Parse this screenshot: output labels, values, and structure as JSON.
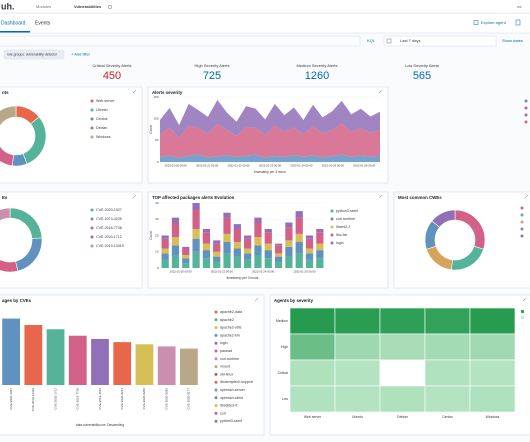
{
  "header": {
    "logo": "uh.",
    "breadcrumb": [
      "Modules",
      "Vulnerabilities"
    ],
    "user": "wz"
  },
  "tabs": [
    "Dashboard",
    "Events"
  ],
  "actions": [
    "Explore agent"
  ],
  "query": {
    "language": "KQL",
    "range": "Last 7 days",
    "show_dates": "Show dates",
    "filter": "rule.groups: vulnerability-detector",
    "add_filter": "+ Add filter"
  },
  "stats": [
    {
      "label": "Critical Severity Alerts",
      "value": 450,
      "color": "#bd271e"
    },
    {
      "label": "High Severity Alerts",
      "value": 725,
      "color": "#006bb4"
    },
    {
      "label": "Medium Severity Alerts",
      "value": 1260,
      "color": "#006bb4"
    },
    {
      "label": "Low Severity Alerts",
      "value": 565,
      "color": "#006bb4"
    }
  ],
  "panels": {
    "agents": {
      "type": "pie",
      "title": "nts",
      "labels": [
        "Web server",
        "Ubuntu",
        "Centos",
        "Debian",
        "Windows"
      ],
      "values": [
        14,
        30,
        8,
        30,
        18
      ],
      "colors": [
        "#e7664c",
        "#54b399",
        "#6092c0",
        "#d36086",
        "#b9a888"
      ]
    },
    "severity": {
      "type": "area",
      "title": "Alerts severity",
      "y_label": "Count",
      "x_label": "timestamp per 3 hours",
      "ylim": [
        0,
        150
      ],
      "yticks": [
        0,
        50,
        100,
        150
      ],
      "xticks": [
        "2022-01-20 00:00",
        "2022-01-21 00:00",
        "2022-01-22 00:00",
        "2022-01-23 00:00",
        "2022-01-24 00:00",
        "2022-01-25 00:00",
        "2022-01-26 00:00"
      ],
      "series": [
        {
          "color": "#6092c0",
          "values": [
            12,
            15,
            10,
            14,
            18,
            11,
            13,
            16,
            12,
            15,
            17,
            10,
            14,
            12,
            16,
            13,
            15,
            11,
            14,
            17,
            12,
            15,
            13,
            14
          ]
        },
        {
          "color": "#d36086",
          "values": [
            50,
            65,
            45,
            70,
            60,
            55,
            75,
            58,
            48,
            66,
            62,
            52,
            70,
            57,
            64,
            50,
            68,
            55,
            60,
            72,
            58,
            63,
            54,
            60
          ]
        },
        {
          "color": "#9170b8",
          "values": [
            35,
            45,
            30,
            50,
            42,
            38,
            55,
            40,
            33,
            48,
            44,
            36,
            50,
            39,
            46,
            34,
            49,
            37,
            43,
            52,
            40,
            45,
            38,
            42
          ]
        }
      ]
    },
    "cves": {
      "type": "pie",
      "title": "Es",
      "labels": [
        "CVE-2020-1927",
        "CVE-2073-4235",
        "CVE-2018-7738",
        "CVE-2020-1712",
        "CVE-2019-13419"
      ],
      "values": [
        24,
        22,
        20,
        18,
        16
      ],
      "colors": [
        "#54b399",
        "#6092c0",
        "#d36086",
        "#9170b8",
        "#ca8eae"
      ]
    },
    "packages": {
      "type": "bar",
      "title": "TOP affected packages alerts Evolution",
      "y_label": "Count",
      "x_label": "timestamp per 3 hours",
      "ylim": [
        0,
        40
      ],
      "yticks": [
        0,
        10,
        20,
        30,
        40
      ],
      "xticks": [
        "2022-01-20 00:00",
        "2022-01-22 00:00",
        "2022-01-24 00:00",
        "2022-01-26 00:00"
      ],
      "series": [
        {
          "name": "python3-samf",
          "color": "#54b399",
          "values": [
            5,
            8,
            3,
            10,
            6,
            4,
            9,
            7,
            5,
            8,
            6,
            4,
            7,
            9,
            5,
            6
          ]
        },
        {
          "name": "curl-runtime",
          "color": "#6092c0",
          "values": [
            4,
            6,
            3,
            8,
            5,
            3,
            7,
            5,
            4,
            6,
            5,
            3,
            6,
            7,
            4,
            5
          ]
        },
        {
          "name": "libxml2-2",
          "color": "#d6bf57",
          "values": [
            3,
            5,
            2,
            6,
            4,
            3,
            5,
            4,
            3,
            5,
            4,
            2,
            4,
            5,
            3,
            4
          ]
        },
        {
          "name": "libc-bin",
          "color": "#d36086",
          "values": [
            6,
            9,
            4,
            12,
            7,
            5,
            10,
            8,
            6,
            9,
            7,
            5,
            8,
            10,
            6,
            7
          ]
        },
        {
          "name": "login",
          "color": "#9170b8",
          "values": [
            2,
            3,
            1,
            4,
            2,
            2,
            3,
            3,
            2,
            3,
            2,
            1,
            3,
            4,
            2,
            2
          ]
        }
      ]
    },
    "cwes": {
      "type": "pie",
      "title": "Most common CWEs",
      "values": [
        30,
        22,
        18,
        16,
        14
      ],
      "colors": [
        "#d36086",
        "#54b399",
        "#d6a35c",
        "#6092c0",
        "#9170b8"
      ]
    },
    "bycve": {
      "type": "bar",
      "title": "ages by CVEs",
      "x_label": "data.vulnerability.cve: Descending",
      "ylim": [
        0,
        70
      ],
      "categories": [
        "CVE-2020-1927",
        "CVE-2019-13419",
        "CVE-2020-1712",
        "CVE-2018-7738",
        "CVE-2019-3844",
        "CVE-2020-8231",
        "CVE-2020-8286",
        "CVE-2020-8285",
        "CVE-2020-8177"
      ],
      "values": [
        62,
        56,
        52,
        46,
        43,
        40,
        38,
        36,
        34
      ],
      "colors": [
        "#6092c0",
        "#e7664c",
        "#54b399",
        "#d36086",
        "#9170b8",
        "#e7664c",
        "#d6bf57",
        "#ca8eae",
        "#b9a888"
      ],
      "legend": [
        "apache2-data",
        "apache2",
        "apache2-utils",
        "apache2-bin",
        "login",
        "passwd",
        "curl-runtime",
        "mount",
        "util-linux",
        "libutempter0-support",
        "openssh-server",
        "openssh-client",
        "libsqlite3-0",
        "curl",
        "python3-samf"
      ],
      "legend_colors": [
        "#e7664c",
        "#54b399",
        "#d6bf57",
        "#6092c0",
        "#9170b8",
        "#d36086",
        "#ca8eae",
        "#b9a888",
        "#aa6556",
        "#e7664c",
        "#54b399",
        "#6092c0",
        "#d6bf57",
        "#d36086",
        "#9170b8"
      ]
    },
    "heatmap": {
      "type": "heatmap",
      "title": "Agents by severity",
      "rows": [
        "Medium",
        "High",
        "Critical",
        "Low"
      ],
      "columns": [
        "Web server",
        "Ubuntu",
        "Debian",
        "Centos",
        "Windows"
      ],
      "values": [
        [
          95,
          92,
          90,
          88,
          94
        ],
        [
          55,
          25,
          20,
          22,
          24
        ],
        [
          15,
          12,
          0,
          14,
          13
        ],
        [
          14,
          13,
          15,
          12,
          16
        ]
      ],
      "max": 100,
      "empty_color": "#ffffff",
      "low_color": "#c9eed2",
      "high_color": "#1d9648"
    }
  }
}
